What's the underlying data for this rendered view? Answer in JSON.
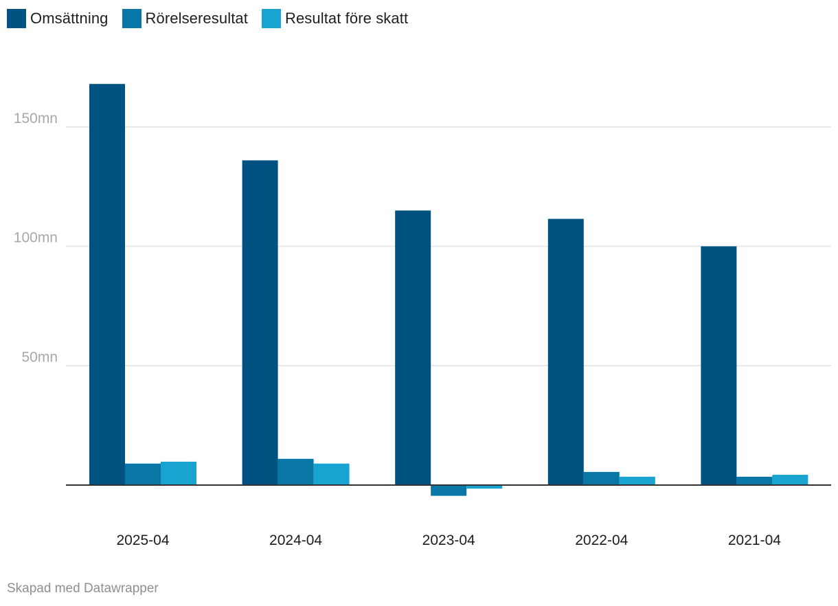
{
  "chart_data": {
    "type": "bar",
    "categories": [
      "2025-04",
      "2024-04",
      "2023-04",
      "2022-04",
      "2021-04"
    ],
    "series": [
      {
        "name": "Omsättning",
        "color": "#005380",
        "values": [
          168,
          136,
          115,
          111.5,
          100
        ]
      },
      {
        "name": "Rörelseresultat",
        "color": "#0877a6",
        "values": [
          9,
          11,
          -4.5,
          5.5,
          3.5
        ]
      },
      {
        "name": "Resultat före skatt",
        "color": "#18a3d0",
        "values": [
          9.8,
          9,
          -1.5,
          3.5,
          4.3
        ]
      }
    ],
    "yticks": [
      {
        "value": 50,
        "label": "50mn"
      },
      {
        "value": 100,
        "label": "100mn"
      },
      {
        "value": 150,
        "label": "150mn"
      }
    ],
    "ylim": [
      -10,
      175
    ],
    "grid": true,
    "legend_position": "top-left"
  },
  "footer": {
    "text": "Skapad med Datawrapper"
  }
}
